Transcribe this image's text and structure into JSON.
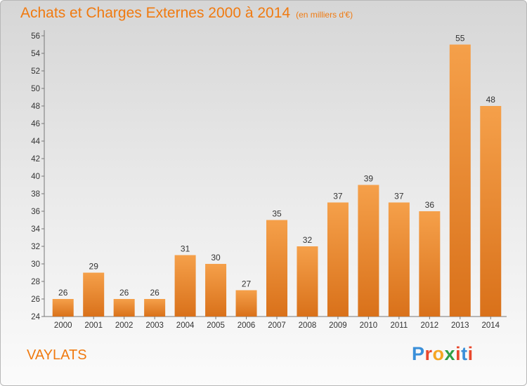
{
  "chart_data": {
    "type": "bar",
    "title": "Achats et Charges Externes 2000 à 2014",
    "subtitle": "(en milliers d'€)",
    "categories": [
      "2000",
      "2001",
      "2002",
      "2003",
      "2004",
      "2005",
      "2006",
      "2007",
      "2008",
      "2009",
      "2010",
      "2011",
      "2012",
      "2013",
      "2014"
    ],
    "values": [
      26,
      29,
      26,
      26,
      31,
      30,
      27,
      35,
      32,
      37,
      39,
      37,
      36,
      55,
      48
    ],
    "ylim": [
      24,
      56
    ],
    "yticks": [
      24,
      26,
      28,
      30,
      32,
      34,
      36,
      38,
      40,
      42,
      44,
      46,
      48,
      50,
      52,
      54,
      56
    ],
    "grid": false,
    "bar_color": "#f08c2a"
  },
  "commune": "VAYLATS",
  "logo": {
    "text": "Proxiti",
    "colors": [
      "#3a8fd9",
      "#e9482d",
      "#f5a623",
      "#2f9e44",
      "#e9482d",
      "#3a8fd9",
      "#e9482d"
    ]
  }
}
